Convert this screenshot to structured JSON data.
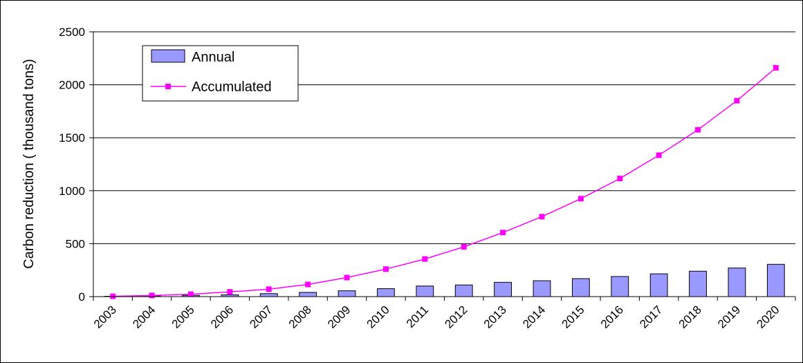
{
  "chart_data": {
    "type": "bar",
    "categories": [
      "2003",
      "2004",
      "2005",
      "2006",
      "2007",
      "2008",
      "2009",
      "2010",
      "2011",
      "2012",
      "2013",
      "2014",
      "2015",
      "2016",
      "2017",
      "2018",
      "2019",
      "2020"
    ],
    "series": [
      {
        "name": "Annual",
        "type": "bar",
        "color": "#9999ff",
        "values": [
          3,
          8,
          12,
          17,
          28,
          40,
          55,
          75,
          100,
          110,
          135,
          150,
          170,
          190,
          215,
          240,
          270,
          305
        ]
      },
      {
        "name": "Accumulated",
        "type": "line",
        "color": "#ff00ff",
        "values": [
          3,
          11,
          23,
          45,
          70,
          115,
          180,
          260,
          355,
          470,
          605,
          755,
          925,
          1115,
          1335,
          1575,
          1850,
          2160
        ]
      }
    ],
    "ylabel": "Carbon reduction ( thousand tons)",
    "ylim": [
      0,
      2500
    ],
    "yticks": [
      0,
      500,
      1000,
      1500,
      2000,
      2500
    ],
    "grid": true,
    "legend_position": "top-left"
  }
}
